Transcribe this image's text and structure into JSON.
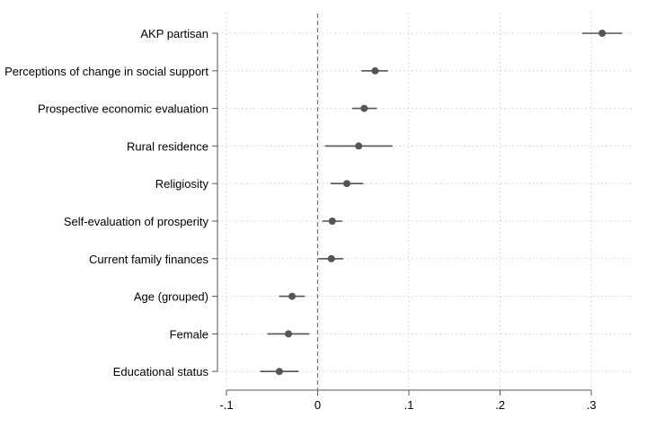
{
  "chart_data": {
    "type": "scatter",
    "subtype": "coefficient-plot",
    "title": "",
    "xlabel": "",
    "ylabel": "",
    "xlim": [
      -0.1,
      0.34
    ],
    "x_ticks": [
      {
        "value": -0.1,
        "label": "-.1"
      },
      {
        "value": 0,
        "label": "0"
      },
      {
        "value": 0.1,
        "label": ".1"
      },
      {
        "value": 0.2,
        "label": ".2"
      },
      {
        "value": 0.3,
        "label": ".3"
      }
    ],
    "reference_line": 0,
    "grid": true,
    "colors": {
      "marker": "#555555",
      "ci": "#555555",
      "grid": "#d0d0d0",
      "axis": "#555555"
    },
    "series": [
      {
        "points": [
          {
            "label": "AKP partisan",
            "estimate": 0.312,
            "ci_low": 0.29,
            "ci_high": 0.334
          },
          {
            "label": "Perceptions of change in social support",
            "estimate": 0.063,
            "ci_low": 0.048,
            "ci_high": 0.077
          },
          {
            "label": "Prospective economic evaluation",
            "estimate": 0.051,
            "ci_low": 0.038,
            "ci_high": 0.065
          },
          {
            "label": "Rural residence",
            "estimate": 0.045,
            "ci_low": 0.008,
            "ci_high": 0.082
          },
          {
            "label": "Religiosity",
            "estimate": 0.032,
            "ci_low": 0.014,
            "ci_high": 0.05
          },
          {
            "label": "Self-evaluation of prosperity",
            "estimate": 0.016,
            "ci_low": 0.005,
            "ci_high": 0.027
          },
          {
            "label": "Current family finances",
            "estimate": 0.015,
            "ci_low": 0.001,
            "ci_high": 0.028
          },
          {
            "label": "Age (grouped)",
            "estimate": -0.028,
            "ci_low": -0.042,
            "ci_high": -0.014
          },
          {
            "label": "Female",
            "estimate": -0.032,
            "ci_low": -0.055,
            "ci_high": -0.009
          },
          {
            "label": "Educational status",
            "estimate": -0.042,
            "ci_low": -0.063,
            "ci_high": -0.021
          }
        ]
      }
    ]
  }
}
